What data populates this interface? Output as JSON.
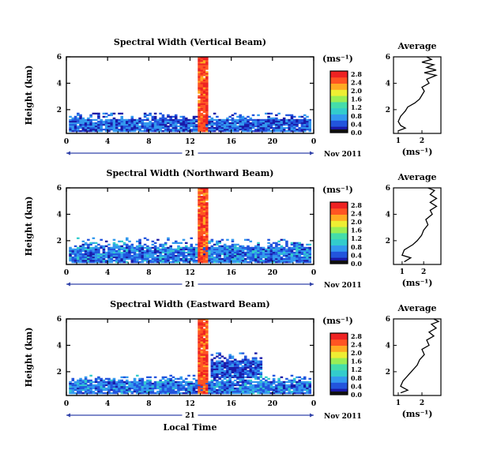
{
  "common": {
    "ylabel": "Height (km)",
    "date_label": "Nov 2011",
    "day_label": "21",
    "xlabel": "Local Time",
    "unit_label": "(ms⁻¹)",
    "avg_title": "Average",
    "avg_xlabel": "(ms⁻¹)"
  },
  "chart_data": [
    {
      "type": "heatmap",
      "title": "Spectral Width (Vertical Beam)",
      "ylabel": "Height (km)",
      "xlabel_ticks": [
        "0",
        "4",
        "8",
        "12",
        "16",
        "20",
        "0"
      ],
      "x_ticks": [
        0,
        4,
        8,
        12,
        16,
        20,
        24
      ],
      "xlim": [
        0,
        24
      ],
      "y_ticks": [
        2,
        4,
        6
      ],
      "ylim": [
        0.2,
        6.0
      ],
      "colorbar": {
        "label": "(ms⁻¹)",
        "ticks": [
          "0.0",
          "0.4",
          "0.8",
          "1.2",
          "1.6",
          "2.0",
          "2.4",
          "2.8"
        ],
        "range": [
          0,
          3.0
        ]
      },
      "date_label": "Nov 2011",
      "day_label": "21",
      "features": [
        {
          "x_range": [
            0.2,
            23.8
          ],
          "height_range": [
            0.3,
            1.8
          ],
          "value": 0.5,
          "description_value": "boundary layer echoes"
        },
        {
          "x_range": [
            12.8,
            13.8
          ],
          "height_range": [
            0.3,
            6.0
          ],
          "value": 2.9,
          "description_value": "strong plume"
        }
      ],
      "average_profile": {
        "title": "Average",
        "xlabel": "(ms⁻¹)",
        "x_ticks": [
          1,
          2
        ],
        "xlim": [
          0.8,
          2.8
        ],
        "ylim": [
          0.2,
          6.0
        ],
        "y_ticks": [
          2,
          4,
          6
        ],
        "points": [
          [
            1.0,
            0.4
          ],
          [
            1.3,
            0.6
          ],
          [
            1.1,
            0.8
          ],
          [
            1.0,
            1.1
          ],
          [
            1.1,
            1.5
          ],
          [
            1.3,
            1.9
          ],
          [
            1.4,
            2.2
          ],
          [
            1.7,
            2.5
          ],
          [
            1.9,
            2.8
          ],
          [
            2.0,
            3.1
          ],
          [
            2.1,
            3.4
          ],
          [
            2.0,
            3.7
          ],
          [
            2.3,
            4.0
          ],
          [
            2.2,
            4.3
          ],
          [
            2.6,
            4.6
          ],
          [
            2.1,
            4.8
          ],
          [
            2.6,
            5.0
          ],
          [
            2.2,
            5.2
          ],
          [
            2.5,
            5.4
          ],
          [
            2.0,
            5.6
          ],
          [
            2.4,
            5.8
          ],
          [
            2.2,
            6.0
          ]
        ]
      }
    },
    {
      "type": "heatmap",
      "title": "Spectral Width (Northward Beam)",
      "ylabel": "Height (km)",
      "xlabel_ticks": [
        "0",
        "4",
        "8",
        "12",
        "16",
        "20",
        "0"
      ],
      "x_ticks": [
        0,
        4,
        8,
        12,
        16,
        20,
        24
      ],
      "xlim": [
        0,
        24
      ],
      "y_ticks": [
        2,
        4,
        6
      ],
      "ylim": [
        0.2,
        6.0
      ],
      "colorbar": {
        "label": "(ms⁻¹)",
        "ticks": [
          "0.0",
          "0.4",
          "0.8",
          "1.2",
          "1.6",
          "2.0",
          "2.4",
          "2.8"
        ],
        "range": [
          0,
          3.0
        ]
      },
      "date_label": "Nov 2011",
      "day_label": "21",
      "features": [
        {
          "x_range": [
            0.2,
            23.8
          ],
          "height_range": [
            0.3,
            2.2
          ],
          "value": 0.6,
          "description_value": "boundary layer echoes"
        },
        {
          "x_range": [
            12.8,
            13.8
          ],
          "height_range": [
            0.3,
            6.0
          ],
          "value": 2.9,
          "description_value": "strong plume"
        }
      ],
      "average_profile": {
        "title": "Average",
        "xlabel": "(ms⁻¹)",
        "x_ticks": [
          1,
          2
        ],
        "xlim": [
          0.6,
          2.8
        ],
        "ylim": [
          0.2,
          6.0
        ],
        "y_ticks": [
          2,
          4,
          6
        ],
        "points": [
          [
            1.1,
            0.4
          ],
          [
            1.4,
            0.7
          ],
          [
            1.0,
            0.9
          ],
          [
            1.1,
            1.3
          ],
          [
            1.5,
            1.7
          ],
          [
            1.7,
            2.0
          ],
          [
            1.9,
            2.4
          ],
          [
            2.0,
            2.8
          ],
          [
            2.2,
            3.2
          ],
          [
            2.1,
            3.6
          ],
          [
            2.4,
            4.0
          ],
          [
            2.3,
            4.3
          ],
          [
            2.6,
            4.6
          ],
          [
            2.3,
            4.9
          ],
          [
            2.6,
            5.2
          ],
          [
            2.3,
            5.5
          ],
          [
            2.5,
            5.8
          ],
          [
            2.2,
            6.0
          ]
        ]
      }
    },
    {
      "type": "heatmap",
      "title": "Spectral Width (Eastward Beam)",
      "ylabel": "Height (km)",
      "xlabel": "Local Time",
      "xlabel_ticks": [
        "0",
        "4",
        "8",
        "12",
        "16",
        "20",
        "0"
      ],
      "x_ticks": [
        0,
        4,
        8,
        12,
        16,
        20,
        24
      ],
      "xlim": [
        0,
        24
      ],
      "y_ticks": [
        2,
        4,
        6
      ],
      "ylim": [
        0.2,
        6.0
      ],
      "colorbar": {
        "label": "(ms⁻¹)",
        "ticks": [
          "0.0",
          "0.4",
          "0.8",
          "1.2",
          "1.6",
          "2.0",
          "2.4",
          "2.8"
        ],
        "range": [
          0,
          3.0
        ]
      },
      "date_label": "Nov 2011",
      "day_label": "21",
      "features": [
        {
          "x_range": [
            0.2,
            23.8
          ],
          "height_range": [
            0.3,
            1.8
          ],
          "value": 0.6,
          "description_value": "boundary layer echoes"
        },
        {
          "x_range": [
            12.8,
            13.8
          ],
          "height_range": [
            0.3,
            6.0
          ],
          "value": 2.9,
          "description_value": "strong plume"
        },
        {
          "x_range": [
            14,
            19
          ],
          "height_range": [
            1.5,
            3.5
          ],
          "value": 0.4,
          "description_value": "scattered echoes"
        }
      ],
      "average_profile": {
        "title": "Average",
        "xlabel": "(ms⁻¹)",
        "x_ticks": [
          1,
          2
        ],
        "xlim": [
          0.8,
          2.8
        ],
        "ylim": [
          0.2,
          6.0
        ],
        "y_ticks": [
          2,
          4,
          6
        ],
        "points": [
          [
            1.1,
            0.4
          ],
          [
            1.4,
            0.6
          ],
          [
            1.1,
            0.9
          ],
          [
            1.2,
            1.3
          ],
          [
            1.4,
            1.7
          ],
          [
            1.6,
            2.1
          ],
          [
            1.8,
            2.5
          ],
          [
            1.9,
            2.9
          ],
          [
            2.1,
            3.3
          ],
          [
            2.0,
            3.7
          ],
          [
            2.3,
            4.0
          ],
          [
            2.2,
            4.4
          ],
          [
            2.5,
            4.7
          ],
          [
            2.3,
            5.0
          ],
          [
            2.6,
            5.3
          ],
          [
            2.4,
            5.6
          ],
          [
            2.7,
            5.8
          ],
          [
            2.5,
            6.0
          ]
        ]
      }
    }
  ]
}
